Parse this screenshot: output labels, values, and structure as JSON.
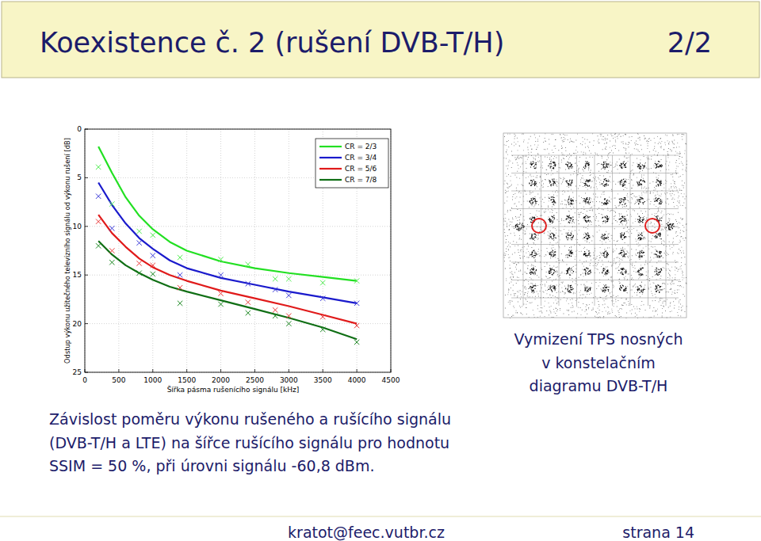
{
  "slide": {
    "title": "Koexistence č. 2 (rušení DVB-T/H)",
    "page": "2/2",
    "chart_caption": [
      "Závislost poměru výkonu rušeného a rušícího signálu",
      "(DVB-T/H a LTE) na šířce rušícího signálu pro hodnotu",
      "SSIM = 50 %, při úrovni signálu -60,8 dBm."
    ],
    "image_caption": [
      "Vymizení TPS nosných",
      "v konstelačním",
      "diagramu DVB-T/H"
    ],
    "footer_email": "kratot@feec.vutbr.cz",
    "footer_page": "strana 14"
  },
  "chart_data": {
    "type": "line",
    "xlabel": "Šířka pásma rušenícího signálu [kHz]",
    "ylabel": "Odstup výkonu užitečného televizního signálu od výkonu rušení [dB]",
    "xlim": [
      0,
      4500
    ],
    "xticks": [
      0,
      500,
      1000,
      1500,
      2000,
      2500,
      3000,
      3500,
      4000,
      4500
    ],
    "ylim": [
      25,
      0
    ],
    "yticks": [
      0,
      5,
      10,
      15,
      20,
      25
    ],
    "grid": true,
    "legend": "upper right",
    "series": [
      {
        "name": "CR = 2/3",
        "type": "line",
        "color": "#22e022",
        "x": [
          200,
          400,
          600,
          800,
          1000,
          1250,
          1500,
          2000,
          2500,
          3000,
          3500,
          4000
        ],
        "values": [
          1.8,
          4.5,
          7.0,
          8.9,
          10.3,
          11.6,
          12.5,
          13.6,
          14.3,
          14.8,
          15.2,
          15.6
        ]
      },
      {
        "name": "CR = 3/4",
        "type": "line",
        "color": "#1a1acc",
        "x": [
          200,
          400,
          600,
          800,
          1000,
          1250,
          1500,
          2000,
          2500,
          3000,
          3500,
          4000
        ],
        "values": [
          5.5,
          7.8,
          9.7,
          11.2,
          12.3,
          13.5,
          14.3,
          15.3,
          16.0,
          16.7,
          17.3,
          17.9
        ]
      },
      {
        "name": "CR = 5/6",
        "type": "line",
        "color": "#e01a1a",
        "x": [
          200,
          400,
          600,
          800,
          1000,
          1250,
          1500,
          2000,
          2500,
          3000,
          3500,
          4000
        ],
        "values": [
          8.8,
          10.7,
          12.1,
          13.3,
          14.2,
          15.0,
          15.6,
          16.6,
          17.4,
          18.2,
          19.1,
          20.0
        ]
      },
      {
        "name": "CR = 7/8",
        "type": "line",
        "color": "#0f6e14",
        "x": [
          200,
          400,
          600,
          800,
          1000,
          1250,
          1500,
          2000,
          2500,
          3000,
          3500,
          4000
        ],
        "values": [
          11.5,
          12.9,
          14.0,
          14.8,
          15.5,
          16.2,
          16.7,
          17.6,
          18.5,
          19.4,
          20.4,
          21.6
        ]
      },
      {
        "type": "scatter",
        "marker": "x",
        "color": "#55ee55",
        "x": [
          200,
          400,
          800,
          1000,
          1400,
          2000,
          2400,
          2800,
          3000,
          3500,
          4000
        ],
        "values": [
          3.9,
          7.7,
          10.5,
          10.9,
          13.2,
          13.4,
          13.9,
          15.4,
          15.4,
          15.8,
          15.6
        ]
      },
      {
        "type": "scatter",
        "marker": "x",
        "color": "#3a3ad8",
        "x": [
          200,
          400,
          800,
          1000,
          1400,
          2000,
          2400,
          2800,
          3000,
          3500,
          4000
        ],
        "values": [
          6.9,
          10.2,
          11.7,
          13.0,
          15.0,
          15.0,
          15.9,
          16.5,
          17.1,
          17.4,
          17.9
        ]
      },
      {
        "type": "scatter",
        "marker": "x",
        "color": "#ea3a3a",
        "x": [
          200,
          400,
          800,
          1000,
          1400,
          2000,
          2400,
          2800,
          3000,
          3500,
          4000
        ],
        "values": [
          9.5,
          12.5,
          13.8,
          14.0,
          16.3,
          16.9,
          17.8,
          18.6,
          19.2,
          19.3,
          20.2
        ]
      },
      {
        "type": "scatter",
        "marker": "x",
        "color": "#1f8a25",
        "x": [
          200,
          400,
          800,
          1000,
          1400,
          2000,
          2400,
          2800,
          3000,
          3500,
          4000
        ],
        "values": [
          12.0,
          13.7,
          14.8,
          14.9,
          17.9,
          18.0,
          18.9,
          19.2,
          20.0,
          20.6,
          21.9
        ]
      }
    ]
  }
}
